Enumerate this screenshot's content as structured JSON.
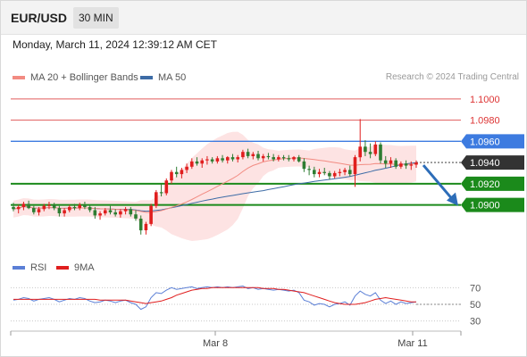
{
  "header": {
    "symbol": "EUR/USD",
    "interval": "30 MIN"
  },
  "datetime": "Monday, March 11, 2024 12:39:12 AM CET",
  "legend": {
    "ma20_label": "MA 20 + Bollinger Bands",
    "ma20_color": "#f28b82",
    "ma50_label": "MA 50",
    "ma50_color": "#3d6ca6",
    "copyright": "Research © 2024 Trading Central"
  },
  "rsi_legend": {
    "rsi_label": "RSI",
    "rsi_color": "#5b7fd6",
    "ma_label": "9MA",
    "ma_color": "#e01e1e"
  },
  "colors": {
    "bull": "#e01e1e",
    "bear": "#2e7d32",
    "resistance": "#e05c5c",
    "pivot": "#3d7be0",
    "support": "#1b8a1b",
    "last": "#333333",
    "arrow": "#2d6db8",
    "band": "#fde3e3"
  },
  "chart_data": [
    {
      "type": "candlestick",
      "y_range": [
        1.0855,
        1.1015
      ],
      "last_price": 1.094,
      "levels": [
        {
          "label": "1.1000",
          "value": 1.1,
          "kind": "resistance"
        },
        {
          "label": "1.0980",
          "value": 1.098,
          "kind": "resistance"
        },
        {
          "label": "1.0960",
          "value": 1.096,
          "kind": "pivot"
        },
        {
          "label": "1.0940",
          "value": 1.094,
          "kind": "last"
        },
        {
          "label": "1.0920",
          "value": 1.092,
          "kind": "support"
        },
        {
          "label": "1.0900",
          "value": 1.09,
          "kind": "support"
        }
      ],
      "x_labels": [
        "Mar 8",
        "Mar 11"
      ],
      "forecast": {
        "direction": "down",
        "from": 1.094,
        "to": 1.09
      },
      "candles": [
        [
          1.0898,
          1.0902,
          1.0894,
          1.0896
        ],
        [
          1.0896,
          1.09,
          1.0892,
          1.0898
        ],
        [
          1.0898,
          1.0903,
          1.0895,
          1.0901
        ],
        [
          1.0901,
          1.0904,
          1.0896,
          1.0897
        ],
        [
          1.0897,
          1.0899,
          1.0891,
          1.0893
        ],
        [
          1.0893,
          1.0898,
          1.089,
          1.0896
        ],
        [
          1.0896,
          1.0901,
          1.0894,
          1.0899
        ],
        [
          1.0899,
          1.0903,
          1.0896,
          1.09
        ],
        [
          1.09,
          1.0902,
          1.0895,
          1.0897
        ],
        [
          1.0897,
          1.0899,
          1.0889,
          1.0892
        ],
        [
          1.0892,
          1.0897,
          1.0889,
          1.0895
        ],
        [
          1.0895,
          1.09,
          1.0893,
          1.0898
        ],
        [
          1.0898,
          1.0901,
          1.0895,
          1.0897
        ],
        [
          1.0897,
          1.0902,
          1.0895,
          1.09
        ],
        [
          1.09,
          1.0903,
          1.0896,
          1.0898
        ],
        [
          1.0898,
          1.09,
          1.0893,
          1.0895
        ],
        [
          1.0895,
          1.0898,
          1.0887,
          1.089
        ],
        [
          1.089,
          1.0894,
          1.0886,
          1.0892
        ],
        [
          1.0892,
          1.0897,
          1.089,
          1.0895
        ],
        [
          1.0895,
          1.0899,
          1.0891,
          1.0893
        ],
        [
          1.0893,
          1.0896,
          1.0889,
          1.0891
        ],
        [
          1.0891,
          1.0896,
          1.0888,
          1.0894
        ],
        [
          1.0894,
          1.0898,
          1.0891,
          1.0896
        ],
        [
          1.0896,
          1.0898,
          1.0889,
          1.0891
        ],
        [
          1.0891,
          1.0895,
          1.0885,
          1.0887
        ],
        [
          1.0887,
          1.089,
          1.0872,
          1.0876
        ],
        [
          1.0876,
          1.0884,
          1.0872,
          1.0882
        ],
        [
          1.0882,
          1.0901,
          1.088,
          1.0899
        ],
        [
          1.0899,
          1.0914,
          1.0897,
          1.0912
        ],
        [
          1.0912,
          1.092,
          1.0908,
          1.0911
        ],
        [
          1.0911,
          1.0925,
          1.0909,
          1.0923
        ],
        [
          1.0923,
          1.0933,
          1.092,
          1.0931
        ],
        [
          1.0931,
          1.0936,
          1.0926,
          1.0929
        ],
        [
          1.0929,
          1.0935,
          1.0925,
          1.0933
        ],
        [
          1.0933,
          1.0939,
          1.093,
          1.0936
        ],
        [
          1.0936,
          1.0944,
          1.0934,
          1.0941
        ],
        [
          1.0941,
          1.0945,
          1.0937,
          1.0939
        ],
        [
          1.0939,
          1.0944,
          1.0935,
          1.0942
        ],
        [
          1.0942,
          1.0946,
          1.0938,
          1.0943
        ],
        [
          1.0943,
          1.0945,
          1.0939,
          1.0941
        ],
        [
          1.0941,
          1.0946,
          1.0939,
          1.0944
        ],
        [
          1.0944,
          1.0947,
          1.094,
          1.0942
        ],
        [
          1.0942,
          1.0946,
          1.0939,
          1.0945
        ],
        [
          1.0945,
          1.0948,
          1.0941,
          1.0943
        ],
        [
          1.0943,
          1.0947,
          1.094,
          1.0945
        ],
        [
          1.0945,
          1.0952,
          1.0943,
          1.095
        ],
        [
          1.095,
          1.0953,
          1.0944,
          1.0946
        ],
        [
          1.0946,
          1.095,
          1.0943,
          1.0948
        ],
        [
          1.0948,
          1.0951,
          1.0942,
          1.0944
        ],
        [
          1.0944,
          1.0948,
          1.0941,
          1.0946
        ],
        [
          1.0946,
          1.0949,
          1.0943,
          1.0945
        ],
        [
          1.0945,
          1.0948,
          1.0941,
          1.0943
        ],
        [
          1.0943,
          1.0947,
          1.0941,
          1.0945
        ],
        [
          1.0945,
          1.0947,
          1.0942,
          1.0944
        ],
        [
          1.0944,
          1.0947,
          1.0941,
          1.0943
        ],
        [
          1.0943,
          1.0946,
          1.0941,
          1.0945
        ],
        [
          1.0945,
          1.0947,
          1.094,
          1.0941
        ],
        [
          1.0941,
          1.0944,
          1.0931,
          1.0934
        ],
        [
          1.0934,
          1.0937,
          1.0928,
          1.0933
        ],
        [
          1.0933,
          1.0936,
          1.0926,
          1.0929
        ],
        [
          1.0929,
          1.0934,
          1.0926,
          1.0931
        ],
        [
          1.0931,
          1.0935,
          1.0928,
          1.093
        ],
        [
          1.093,
          1.0932,
          1.0924,
          1.0927
        ],
        [
          1.0927,
          1.0932,
          1.0925,
          1.093
        ],
        [
          1.093,
          1.0934,
          1.0927,
          1.0931
        ],
        [
          1.0931,
          1.0935,
          1.0928,
          1.0933
        ],
        [
          1.0933,
          1.0937,
          1.0927,
          1.0929
        ],
        [
          1.0929,
          1.0947,
          1.0917,
          1.0945
        ],
        [
          1.0945,
          1.0981,
          1.0941,
          1.0955
        ],
        [
          1.0955,
          1.0961,
          1.0946,
          1.095
        ],
        [
          1.095,
          1.0958,
          1.0944,
          1.0948
        ],
        [
          1.0948,
          1.096,
          1.0946,
          1.0957
        ],
        [
          1.0957,
          1.0959,
          1.0939,
          1.0942
        ],
        [
          1.0942,
          1.0946,
          1.0935,
          1.0939
        ],
        [
          1.0939,
          1.0945,
          1.0935,
          1.0942
        ],
        [
          1.0942,
          1.0944,
          1.0934,
          1.0936
        ],
        [
          1.0936,
          1.0941,
          1.0934,
          1.0939
        ],
        [
          1.0939,
          1.0942,
          1.0934,
          1.0937
        ],
        [
          1.0937,
          1.0941,
          1.0933,
          1.0938
        ],
        [
          1.0938,
          1.0942,
          1.0935,
          1.094
        ]
      ]
    },
    {
      "type": "line",
      "name": "RSI",
      "y_ticks": [
        70,
        50,
        30
      ],
      "y_range": [
        20,
        80
      ],
      "rsi": [
        55,
        56,
        58,
        57,
        54,
        56,
        57,
        58,
        56,
        53,
        55,
        57,
        56,
        58,
        57,
        54,
        52,
        53,
        55,
        54,
        52,
        54,
        55,
        52,
        50,
        44,
        47,
        58,
        64,
        63,
        67,
        70,
        68,
        69,
        70,
        71,
        69,
        70,
        71,
        70,
        71,
        70,
        71,
        70,
        71,
        72,
        69,
        70,
        68,
        69,
        68,
        67,
        68,
        67,
        66,
        67,
        64,
        55,
        53,
        49,
        51,
        50,
        47,
        50,
        51,
        53,
        49,
        60,
        66,
        62,
        60,
        64,
        55,
        51,
        54,
        50,
        53,
        51,
        52,
        53
      ],
      "ma": [
        56,
        56,
        56,
        56,
        56,
        56,
        56,
        56,
        56,
        56,
        56,
        56,
        56,
        56,
        56,
        56,
        56,
        55,
        55,
        55,
        55,
        55,
        55,
        54,
        53,
        52,
        51,
        52,
        53,
        54,
        56,
        58,
        61,
        63,
        65,
        67,
        68,
        69,
        69,
        70,
        70,
        70,
        70,
        70,
        70,
        70,
        70,
        70,
        70,
        69,
        69,
        69,
        68,
        68,
        67,
        66,
        65,
        64,
        62,
        60,
        58,
        56,
        54,
        52,
        51,
        50,
        50,
        50,
        51,
        52,
        54,
        56,
        57,
        58,
        57,
        56,
        55,
        54,
        53,
        53
      ]
    }
  ]
}
